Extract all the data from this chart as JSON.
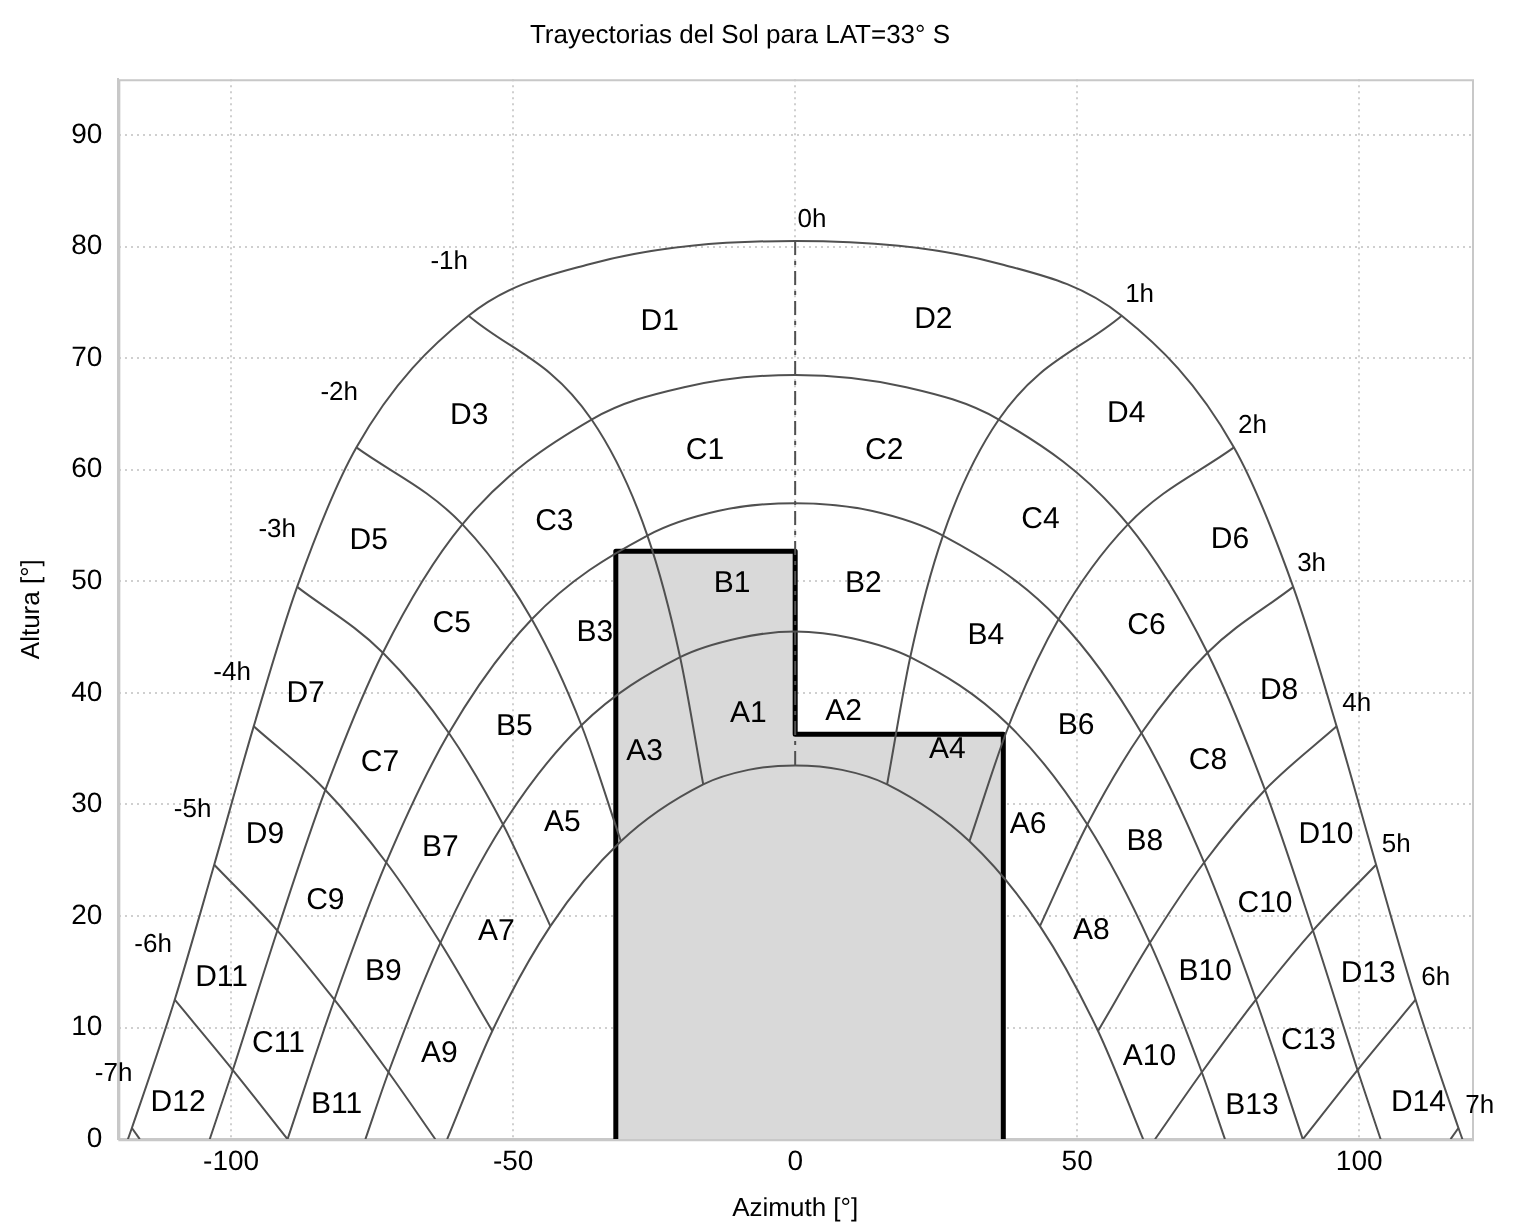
{
  "chart_data": {
    "type": "line",
    "title": "Trayectorias del Sol para LAT=33° S",
    "xlabel": "Azimuth [°]",
    "ylabel": "Altura [°]",
    "xlim": [
      -120,
      120
    ],
    "ylim": [
      0,
      95
    ],
    "xticks": [
      -100,
      -50,
      0,
      50,
      100
    ],
    "yticks": [
      0,
      10,
      20,
      30,
      40,
      50,
      60,
      70,
      80,
      90
    ],
    "grid": true,
    "legend": false,
    "marker": "none",
    "line_style": "solid",
    "series": [
      {
        "color": "#505050",
        "x": [
          -118.3,
          -117.6,
          -110.0,
          -103.0,
          -96.0,
          -88.3,
          -77.8,
          -57.9,
          -36.7,
          0,
          36.7,
          57.9,
          77.8,
          88.3,
          96.0,
          103.0,
          110.0,
          117.6,
          118.3
        ],
        "values": [
          0,
          1.0,
          12.5,
          24.6,
          37.0,
          49.5,
          62.0,
          73.8,
          78.4,
          80.5,
          78.4,
          73.8,
          62.0,
          49.5,
          37.0,
          24.6,
          12.5,
          1.0,
          0
        ]
      },
      {
        "color": "#505050",
        "x": [
          -103.8,
          -99.7,
          -91.8,
          -83.3,
          -73.1,
          -59.0,
          -36.1,
          -19.7,
          0,
          19.7,
          36.1,
          59.0,
          73.1,
          83.3,
          91.8,
          99.7,
          103.8
        ],
        "values": [
          0,
          6.2,
          18.7,
          31.3,
          43.6,
          55.1,
          64.5,
          67.4,
          68.5,
          67.4,
          64.5,
          55.1,
          43.6,
          31.3,
          18.7,
          6.2,
          0
        ]
      },
      {
        "color": "#505050",
        "x": [
          -90,
          -81.7,
          -72.5,
          -61.4,
          -46.7,
          -26.2,
          -13.7,
          0,
          13.7,
          26.2,
          46.7,
          61.4,
          72.5,
          81.7,
          90
        ],
        "values": [
          0,
          12.5,
          24.8,
          36.4,
          46.6,
          54.1,
          56.3,
          57,
          56.3,
          54.1,
          46.6,
          36.4,
          24.8,
          12.5,
          0
        ]
      },
      {
        "color": "#505050",
        "x": [
          -76.2,
          -72.1,
          -62.9,
          -51.8,
          -37.9,
          -20.4,
          -10.1,
          0,
          10.1,
          20.4,
          37.9,
          51.8,
          62.9,
          72.1,
          76.2
        ],
        "values": [
          0,
          6.0,
          17.6,
          28.2,
          37.1,
          43.2,
          44.9,
          45.5,
          44.9,
          43.2,
          37.1,
          28.2,
          17.6,
          6.0,
          0
        ]
      },
      {
        "color": "#505050",
        "x": [
          -61.7,
          -53.7,
          -43.4,
          -30.9,
          -16.3,
          -8.3,
          0,
          8.3,
          16.3,
          30.9,
          43.4,
          53.7,
          61.7
        ],
        "values": [
          0,
          9.7,
          19.1,
          26.7,
          31.8,
          33.1,
          33.5,
          33.1,
          31.8,
          26.7,
          19.1,
          9.7,
          0
        ]
      },
      {
        "color": "#505050",
        "x": [
          -117.6,
          -116.2
        ],
        "values": [
          1.0,
          0
        ]
      },
      {
        "color": "#505050",
        "x": [
          -110.0,
          -99.7,
          -90
        ],
        "values": [
          12.5,
          6.2,
          0
        ]
      },
      {
        "color": "#505050",
        "x": [
          -103.0,
          -91.8,
          -81.7,
          -72.1,
          -63.8
        ],
        "values": [
          24.6,
          18.7,
          12.5,
          6.0,
          0
        ]
      },
      {
        "color": "#505050",
        "x": [
          -96.0,
          -83.3,
          -72.5,
          -62.9,
          -53.7
        ],
        "values": [
          37.0,
          31.3,
          24.8,
          17.6,
          9.7
        ]
      },
      {
        "color": "#505050",
        "x": [
          -88.3,
          -73.1,
          -61.4,
          -51.8,
          -43.4
        ],
        "values": [
          49.5,
          43.6,
          36.4,
          28.2,
          19.1
        ]
      },
      {
        "color": "#505050",
        "x": [
          -77.8,
          -59.0,
          -46.7,
          -37.9,
          -30.9
        ],
        "values": [
          62.0,
          55.1,
          46.6,
          37.1,
          26.7
        ]
      },
      {
        "color": "#505050",
        "x": [
          -57.9,
          -36.1,
          -26.2,
          -20.4,
          -16.3
        ],
        "values": [
          73.8,
          64.5,
          54.1,
          43.2,
          31.8
        ]
      },
      {
        "color": "#505050",
        "x": [
          0,
          0
        ],
        "values": [
          80.5,
          33.5
        ],
        "line_style": "dashed"
      },
      {
        "color": "#505050",
        "x": [
          57.9,
          36.1,
          26.2,
          20.4,
          16.3
        ],
        "values": [
          73.8,
          64.5,
          54.1,
          43.2,
          31.8
        ]
      },
      {
        "color": "#505050",
        "x": [
          77.8,
          59.0,
          46.7,
          37.9,
          30.9
        ],
        "values": [
          62.0,
          55.1,
          46.6,
          37.1,
          26.7
        ]
      },
      {
        "color": "#505050",
        "x": [
          88.3,
          73.1,
          61.4,
          51.8,
          43.4
        ],
        "values": [
          49.5,
          43.6,
          36.4,
          28.2,
          19.1
        ]
      },
      {
        "color": "#505050",
        "x": [
          96.0,
          83.3,
          72.5,
          62.9,
          53.7
        ],
        "values": [
          37.0,
          31.3,
          24.8,
          17.6,
          9.7
        ]
      },
      {
        "color": "#505050",
        "x": [
          103.0,
          91.8,
          81.7,
          72.1,
          63.8
        ],
        "values": [
          24.6,
          18.7,
          12.5,
          6.0,
          0
        ]
      },
      {
        "color": "#505050",
        "x": [
          110.0,
          99.7,
          90
        ],
        "values": [
          12.5,
          6.2,
          0
        ]
      },
      {
        "color": "#505050",
        "x": [
          117.6,
          116.2
        ],
        "values": [
          1.0,
          0
        ]
      },
      {
        "type": "area",
        "color": "#d9d9d9",
        "x": [
          -31.8,
          -31.8,
          0,
          0,
          36.9,
          36.9
        ],
        "values": [
          0,
          52.7,
          52.7,
          36.3,
          36.3,
          0
        ]
      }
    ],
    "annotations": [
      "0h",
      "-1h",
      "-2h",
      "-3h",
      "-4h",
      "-5h",
      "-6h",
      "-7h",
      "1h",
      "2h",
      "3h",
      "4h",
      "5h",
      "6h",
      "7h",
      "D1",
      "D2",
      "D3",
      "D4",
      "C1",
      "C2",
      "C3",
      "C4",
      "D5",
      "D6",
      "B1",
      "B2",
      "B3",
      "C5",
      "B4",
      "C6",
      "D7",
      "D8",
      "A1",
      "A2",
      "A3",
      "A4",
      "B5",
      "B6",
      "C7",
      "C8",
      "A5",
      "A6",
      "D9",
      "D10",
      "B7",
      "B8",
      "C9",
      "C10",
      "A7",
      "A8",
      "D11",
      "D13",
      "B9",
      "B10",
      "C11",
      "C13",
      "A9",
      "A10",
      "D12",
      "D14",
      "B11",
      "B13"
    ]
  }
}
